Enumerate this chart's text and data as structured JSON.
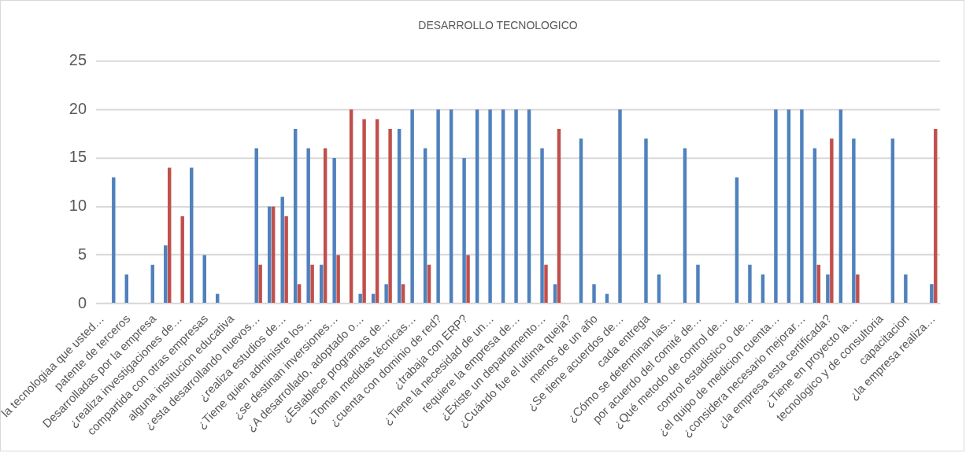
{
  "chart_data": {
    "type": "bar",
    "title": "DESARROLLO TECNOLOGICO",
    "categories": [
      "la tecnologiaa que usted…",
      null,
      "patente de terceros",
      null,
      "Desarrolladas por la empresa",
      null,
      "¿realiza investigaciones de…",
      null,
      "compartida con otras empresas",
      null,
      "alguna institucion educativa",
      null,
      "¿esta desarrollando nuevos…",
      null,
      "¿realiza estudios de…",
      null,
      "¿Tiene quien administre los…",
      null,
      "¿se destinan inversiones…",
      null,
      "¿A desarrollado, adoptado o…",
      null,
      "¿Establece programas de…",
      null,
      "¿Toman medidas técnicas…",
      null,
      "¿cuenta con dominio de red?",
      null,
      "¿trabaja con ERP?",
      null,
      "¿Tiene la necesidad de un…",
      null,
      "requiere la empresa de…",
      null,
      "¿Existe un departamento…",
      null,
      "¿Cuándo fue el ultima queja?",
      null,
      "menos de un año",
      null,
      "¿Se tiene acuerdos de…",
      null,
      "cada entrega",
      null,
      "¿Cómo se determinan las…",
      null,
      "por acuerdo del comité de…",
      null,
      "¿Qué metodo de control de…",
      null,
      "control estadistico o de…",
      null,
      "¿el quipo de medicion cuenta…",
      null,
      "¿considera necesario mejorar…",
      null,
      "¿la empresa esta certificada?",
      null,
      "¿Tiene en proyecto la…",
      null,
      "tecnologico y de consultoria",
      null,
      "capacitacion",
      null,
      "¿la empresa realiza…"
    ],
    "series": [
      {
        "color": "#4f81bd",
        "values": [
          null,
          13,
          3,
          null,
          4,
          6,
          null,
          14,
          5,
          1,
          null,
          null,
          16,
          10,
          11,
          18,
          16,
          4,
          15,
          null,
          1,
          1,
          2,
          18,
          20,
          16,
          20,
          20,
          15,
          20,
          20,
          20,
          20,
          20,
          16,
          2,
          null,
          17,
          2,
          1,
          20,
          null,
          17,
          3,
          null,
          16,
          4,
          null,
          null,
          13,
          4,
          3,
          20,
          20,
          20,
          16,
          3,
          20,
          17,
          null,
          null,
          17,
          3,
          null,
          2
        ]
      },
      {
        "color": "#c0504d",
        "values": [
          null,
          null,
          null,
          null,
          null,
          14,
          9,
          null,
          null,
          null,
          null,
          null,
          4,
          10,
          9,
          2,
          4,
          16,
          5,
          20,
          19,
          19,
          18,
          2,
          null,
          4,
          null,
          null,
          5,
          null,
          null,
          null,
          null,
          null,
          4,
          18,
          null,
          null,
          null,
          null,
          null,
          null,
          null,
          null,
          null,
          null,
          null,
          null,
          null,
          null,
          null,
          null,
          null,
          null,
          null,
          4,
          17,
          null,
          3,
          null,
          null,
          null,
          null,
          null,
          18
        ]
      }
    ],
    "ylim": [
      0,
      25
    ],
    "yticks": [
      0,
      5,
      10,
      15,
      20,
      25
    ],
    "grid": "y",
    "legend": false
  }
}
